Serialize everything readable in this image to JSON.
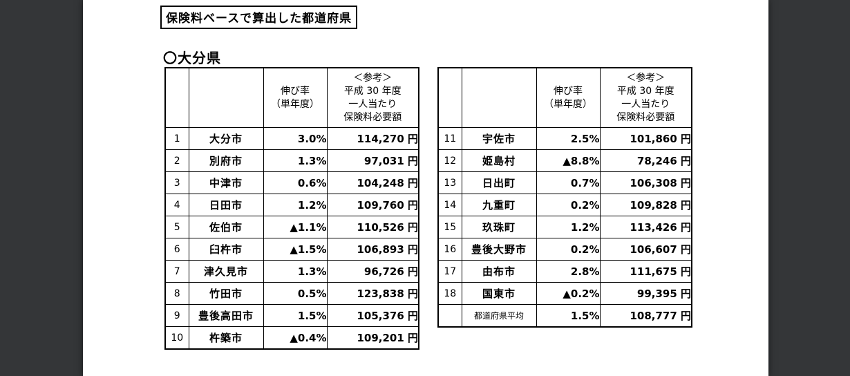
{
  "title_box": {
    "label": "保険料ベースで算出した都道府県"
  },
  "prefecture_heading": "〇大分県",
  "table_header": {
    "rate_line1": "伸び率",
    "rate_line2": "（単年度）",
    "ref_line1": "＜参考＞",
    "ref_line2": "平成 30 年度",
    "ref_line3": "一人当たり",
    "ref_line4": "保険料必要額"
  },
  "left_table": {
    "rows": [
      {
        "no": "1",
        "name": "大分市",
        "rate": "3.0%",
        "amount": "114,270 円"
      },
      {
        "no": "2",
        "name": "別府市",
        "rate": "1.3%",
        "amount": "97,031 円"
      },
      {
        "no": "3",
        "name": "中津市",
        "rate": "0.6%",
        "amount": "104,248 円"
      },
      {
        "no": "4",
        "name": "日田市",
        "rate": "1.2%",
        "amount": "109,760 円"
      },
      {
        "no": "5",
        "name": "佐伯市",
        "rate": "▲1.1%",
        "amount": "110,526 円"
      },
      {
        "no": "6",
        "name": "臼杵市",
        "rate": "▲1.5%",
        "amount": "106,893 円"
      },
      {
        "no": "7",
        "name": "津久見市",
        "rate": "1.3%",
        "amount": "96,726 円"
      },
      {
        "no": "8",
        "name": "竹田市",
        "rate": "0.5%",
        "amount": "123,838 円"
      },
      {
        "no": "9",
        "name": "豊後高田市",
        "rate": "1.5%",
        "amount": "105,376 円"
      },
      {
        "no": "10",
        "name": "杵築市",
        "rate": "▲0.4%",
        "amount": "109,201 円"
      }
    ]
  },
  "right_table": {
    "rows": [
      {
        "no": "11",
        "name": "宇佐市",
        "rate": "2.5%",
        "amount": "101,860 円"
      },
      {
        "no": "12",
        "name": "姫島村",
        "rate": "▲8.8%",
        "amount": "78,246 円"
      },
      {
        "no": "13",
        "name": "日出町",
        "rate": "0.7%",
        "amount": "106,308 円"
      },
      {
        "no": "14",
        "name": "九重町",
        "rate": "0.2%",
        "amount": "109,828 円"
      },
      {
        "no": "15",
        "name": "玖珠町",
        "rate": "1.2%",
        "amount": "113,426 円"
      },
      {
        "no": "16",
        "name": "豊後大野市",
        "rate": "0.2%",
        "amount": "106,607 円"
      },
      {
        "no": "17",
        "name": "由布市",
        "rate": "2.8%",
        "amount": "111,675 円"
      },
      {
        "no": "18",
        "name": "国東市",
        "rate": "▲0.2%",
        "amount": "99,395 円"
      }
    ],
    "average_row": {
      "no": "",
      "name": "都道府県平均",
      "rate": "1.5%",
      "amount": "108,777 円"
    }
  },
  "colors": {
    "viewer_background": "#343638",
    "page_background": "#ffffff",
    "table_border": "#000000",
    "text": "#000000"
  }
}
